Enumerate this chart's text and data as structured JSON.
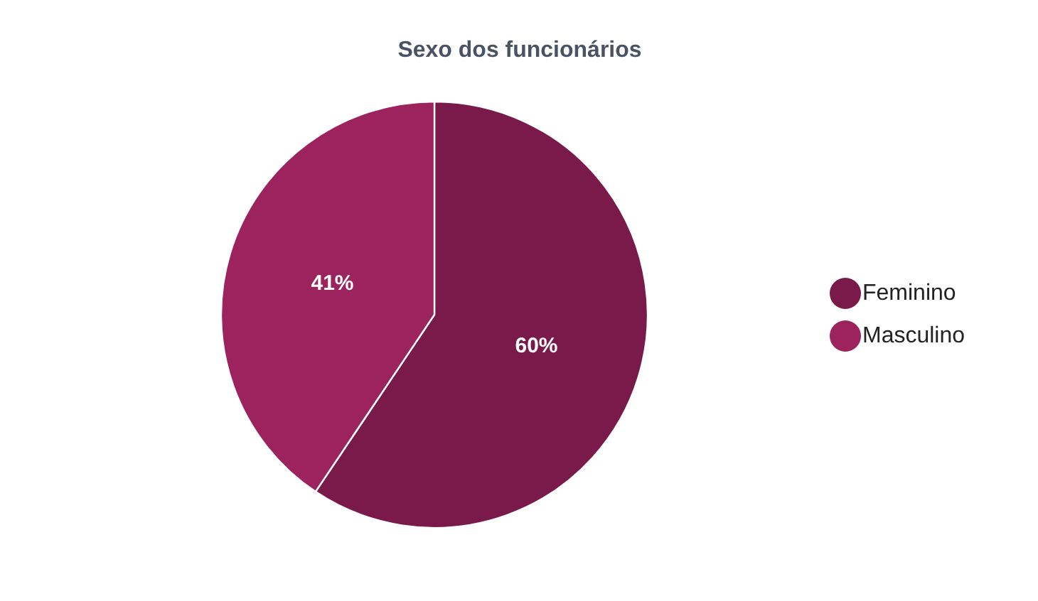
{
  "chart_data": {
    "type": "pie",
    "title": "Sexo dos funcionários",
    "categories": [
      "Feminino",
      "Masculino"
    ],
    "values": [
      60,
      41
    ],
    "colors": [
      "#7a1a4a",
      "#9c235e"
    ],
    "value_labels": [
      "60%",
      "41%"
    ],
    "legend": "right"
  }
}
